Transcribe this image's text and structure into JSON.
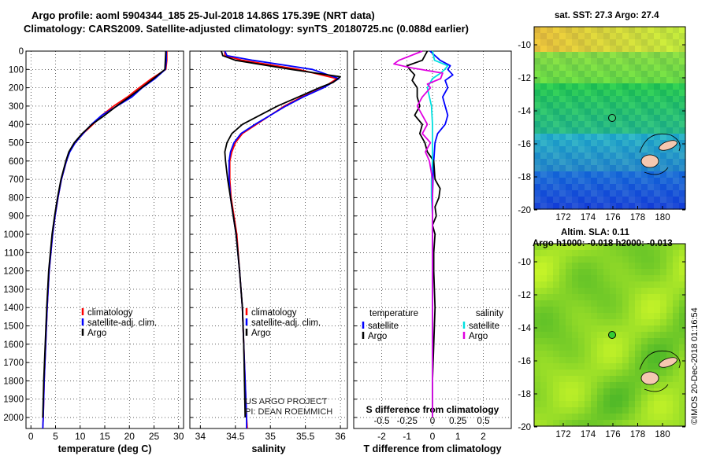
{
  "header": {
    "line1": "Argo profile: aoml 5904344_185 25-Jul-2018 14.86S 175.39E (NRT data)",
    "line2": "Climatology: CARS2009. Satellite-adjusted climatology: synTS_20180725.nc (0.088d earlier)"
  },
  "credit": {
    "line1": "US ARGO PROJECT",
    "line2": "PI: DEAN ROEMMICH"
  },
  "imos": "©IMOS 20-Dec-2018 01:16:54",
  "colors": {
    "climatology": "#ff0000",
    "satellite": "#0000ff",
    "argo": "#000000",
    "sat_salinity": "#00e0e0",
    "argo_salinity": "#e000e0"
  },
  "chart_data": [
    {
      "type": "line",
      "name": "temperature",
      "xlabel": "temperature (deg C)",
      "ylabel": "",
      "xlim": [
        -1,
        31
      ],
      "ylim": [
        2060,
        0
      ],
      "xticks": [
        0,
        5,
        10,
        15,
        20,
        25,
        30
      ],
      "yticks": [
        0,
        100,
        200,
        300,
        400,
        500,
        600,
        700,
        800,
        900,
        1000,
        1100,
        1200,
        1300,
        1400,
        1500,
        1600,
        1700,
        1800,
        1900,
        2000
      ],
      "legend": {
        "entries": [
          "climatology",
          "satellite-adj. clim.",
          "Argo"
        ],
        "position": "lower-right"
      },
      "series": [
        {
          "name": "climatology",
          "depth": [
            0,
            50,
            100,
            150,
            200,
            250,
            300,
            350,
            400,
            450,
            500,
            550,
            600,
            700,
            800,
            900,
            1000,
            1200,
            1400,
            1600,
            1800,
            2000,
            2060
          ],
          "values": [
            27.6,
            27.6,
            27.4,
            24.5,
            22.0,
            19.6,
            16.8,
            14.4,
            12.6,
            10.6,
            9.0,
            7.8,
            7.2,
            6.2,
            5.5,
            4.9,
            4.4,
            3.7,
            3.3,
            3.0,
            2.7,
            2.5,
            2.4
          ]
        },
        {
          "name": "satellite-adj. clim.",
          "depth": [
            0,
            50,
            100,
            150,
            200,
            250,
            300,
            350,
            400,
            450,
            500,
            550,
            600,
            700,
            800,
            900,
            1000,
            1200,
            1400,
            1600,
            1800,
            2000,
            2060
          ],
          "values": [
            27.5,
            27.5,
            27.3,
            25.2,
            22.6,
            20.5,
            17.5,
            14.4,
            12.3,
            10.6,
            9.0,
            7.9,
            7.2,
            6.2,
            5.5,
            4.9,
            4.4,
            3.7,
            3.3,
            3.0,
            2.7,
            2.5,
            2.4
          ]
        },
        {
          "name": "Argo",
          "depth": [
            0,
            50,
            100,
            150,
            200,
            250,
            300,
            350,
            400,
            450,
            500,
            550,
            600,
            700,
            800,
            900,
            1000,
            1200,
            1400,
            1600,
            1800,
            2000
          ],
          "values": [
            27.4,
            27.3,
            27.2,
            24.9,
            22.5,
            20.0,
            17.4,
            15.0,
            12.4,
            10.4,
            8.8,
            7.7,
            7.1,
            6.1,
            5.4,
            4.8,
            4.3,
            3.6,
            3.2,
            2.9,
            2.6,
            2.4
          ]
        }
      ]
    },
    {
      "type": "line",
      "name": "salinity",
      "xlabel": "salinity",
      "ylabel": "",
      "xlim": [
        33.85,
        36.1
      ],
      "ylim": [
        2060,
        0
      ],
      "xticks": [
        34,
        34.5,
        35,
        35.5,
        36
      ],
      "legend": {
        "entries": [
          "climatology",
          "satellite-adj. clim.",
          "Argo"
        ],
        "position": "lower-right"
      },
      "series": [
        {
          "name": "climatology",
          "depth": [
            0,
            25,
            50,
            100,
            150,
            200,
            250,
            300,
            350,
            400,
            450,
            500,
            550,
            600,
            700,
            800,
            900,
            1000,
            1200,
            1400,
            1600,
            1800,
            2000,
            2060
          ],
          "values": [
            34.35,
            34.35,
            34.6,
            35.4,
            35.95,
            35.75,
            35.45,
            35.2,
            35.0,
            34.8,
            34.6,
            34.5,
            34.45,
            34.42,
            34.42,
            34.44,
            34.48,
            34.52,
            34.56,
            34.6,
            34.62,
            34.64,
            34.66,
            34.67
          ]
        },
        {
          "name": "satellite-adj. clim.",
          "depth": [
            0,
            25,
            50,
            100,
            150,
            200,
            250,
            300,
            350,
            400,
            450,
            500,
            550,
            600,
            700,
            800,
            900,
            1000,
            1200,
            1400,
            1600,
            1800,
            2000,
            2060
          ],
          "values": [
            34.35,
            34.38,
            34.75,
            35.6,
            35.98,
            35.76,
            35.47,
            35.22,
            35.0,
            34.78,
            34.58,
            34.48,
            34.43,
            34.41,
            34.41,
            34.43,
            34.47,
            34.51,
            34.56,
            34.6,
            34.62,
            34.64,
            34.66,
            34.66
          ]
        },
        {
          "name": "Argo",
          "depth": [
            0,
            25,
            50,
            100,
            140,
            170,
            200,
            250,
            300,
            350,
            400,
            450,
            500,
            550,
            600,
            700,
            800,
            900,
            1000,
            1200,
            1400,
            1600,
            1800,
            2000
          ],
          "values": [
            34.3,
            34.32,
            34.5,
            35.3,
            36.0,
            35.9,
            35.7,
            35.4,
            35.1,
            34.85,
            34.6,
            34.45,
            34.38,
            34.35,
            34.36,
            34.39,
            34.43,
            34.47,
            34.51,
            34.56,
            34.6,
            34.62,
            34.63,
            34.64
          ]
        }
      ]
    },
    {
      "type": "line",
      "name": "difference",
      "xlabel": "T difference from climatology",
      "xlabel2": "S difference from climatology",
      "xlim": [
        -3.1,
        3.1
      ],
      "ylim": [
        2060,
        0
      ],
      "xticks": [
        -2,
        -1,
        0,
        1,
        2
      ],
      "xticks_s": [
        "-0.5",
        "-0.25",
        "0",
        "0.25",
        "0.5"
      ],
      "xticks_s_values": [
        -0.5,
        -0.25,
        0,
        0.25,
        0.5
      ],
      "legend": {
        "temperature_header": "temperature",
        "salinity_header": "salinity",
        "entries_left": [
          "satellite",
          "Argo"
        ],
        "entries_right": [
          "satellite",
          "salinity_argo"
        ],
        "labels_right": [
          "satellite",
          "Argo"
        ]
      },
      "series": [
        {
          "name": "T satellite",
          "depth": [
            0,
            50,
            80,
            100,
            130,
            160,
            200,
            250,
            300,
            350,
            400,
            450,
            500,
            600,
            700,
            800,
            900,
            1000,
            1200,
            1500,
            2000
          ],
          "values": [
            -0.1,
            0.3,
            0.7,
            0.6,
            0.8,
            0.5,
            0.6,
            0.4,
            0.5,
            0.6,
            0.5,
            0.2,
            0.1,
            0.05,
            0.02,
            0.0,
            0.0,
            0.0,
            0.0,
            0.0,
            0.0
          ]
        },
        {
          "name": "T Argo",
          "depth": [
            0,
            50,
            80,
            100,
            130,
            160,
            200,
            250,
            300,
            350,
            400,
            450,
            500,
            550,
            600,
            700,
            750,
            800,
            850,
            900,
            950,
            1000,
            1100,
            1200,
            1400,
            1600,
            1800,
            2000
          ],
          "values": [
            -0.2,
            -0.4,
            -1.0,
            -0.9,
            -0.7,
            -0.8,
            -0.6,
            -0.6,
            -0.5,
            -0.7,
            -0.4,
            -0.5,
            -0.3,
            -0.2,
            0.05,
            0.1,
            0.3,
            0.25,
            0.1,
            0.15,
            0.0,
            0.1,
            0.05,
            0.05,
            0.1,
            0.05,
            0.0,
            0.0
          ]
        },
        {
          "name": "S satellite",
          "depth": [
            0,
            50,
            80,
            100,
            120,
            150,
            200,
            250,
            300,
            400,
            500,
            600,
            700,
            800,
            900,
            1000,
            1200,
            1500,
            2000
          ],
          "values": [
            0.0,
            0.02,
            0.15,
            0.12,
            0.08,
            0.0,
            -0.05,
            -0.03,
            -0.01,
            0.0,
            0.0,
            0.0,
            -0.01,
            -0.01,
            0.0,
            0.0,
            0.0,
            0.0,
            0.0
          ]
        },
        {
          "name": "S Argo",
          "depth": [
            0,
            50,
            70,
            90,
            120,
            150,
            180,
            200,
            250,
            300,
            350,
            400,
            450,
            500,
            550,
            600,
            700,
            800,
            1000,
            2000
          ],
          "values": [
            -0.1,
            -0.33,
            -0.38,
            -0.22,
            0.1,
            0.08,
            -0.05,
            -0.02,
            -0.1,
            -0.15,
            -0.1,
            -0.05,
            -0.1,
            -0.02,
            -0.07,
            -0.03,
            0.0,
            0.0,
            0.0,
            0.0
          ]
        }
      ]
    }
  ],
  "maps": {
    "sat": {
      "title": "sat. SST: 27.3 Argo: 27.4",
      "xticks": [
        "172",
        "174",
        "176",
        "178",
        "180"
      ],
      "yticks": [
        "-10",
        "-12",
        "-14",
        "-16",
        "-18",
        "-20"
      ]
    },
    "alt": {
      "title1": "Altim. SLA: 0.11",
      "title2": "Argo h1000: -0.018 h2000: -0.013",
      "xticks": [
        "172",
        "174",
        "176",
        "178",
        "180"
      ],
      "yticks": [
        "-10",
        "-12",
        "-14",
        "-16",
        "-18",
        "-20"
      ]
    }
  }
}
